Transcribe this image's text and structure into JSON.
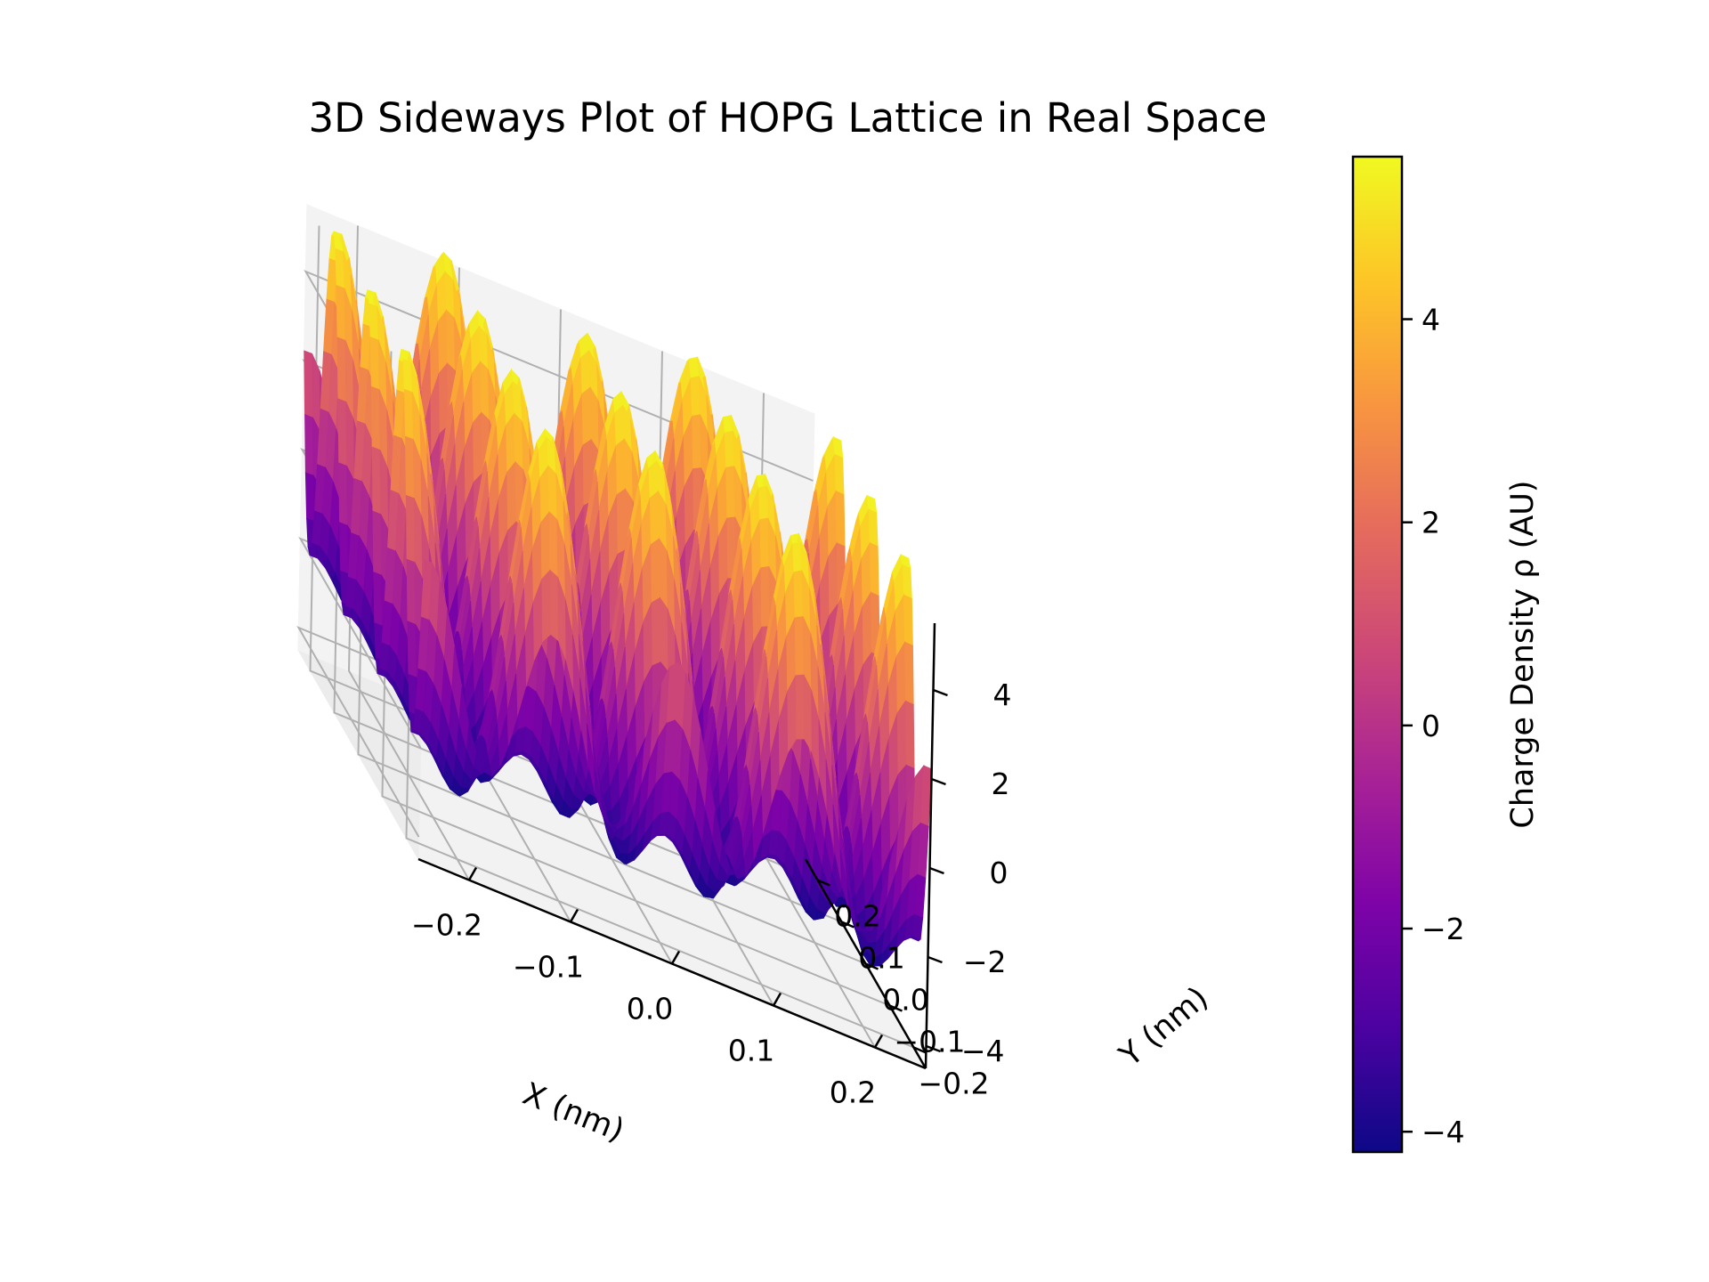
{
  "chart_data": {
    "type": "surface",
    "title": "3D Sideways Plot of HOPG Lattice in Real Space",
    "xlabel": "X (nm)",
    "ylabel": "Y (nm)",
    "zlabel": "",
    "colorbar_label": "Charge Density ρ (AU)",
    "colormap": "plasma",
    "x_range": [
      -0.25,
      0.25
    ],
    "y_range": [
      -0.25,
      0.25
    ],
    "z_range": [
      -4.5,
      5.5
    ],
    "x_ticks": [
      -0.2,
      -0.1,
      0.0,
      0.1,
      0.2
    ],
    "y_ticks": [
      -0.2,
      -0.1,
      0.0,
      0.1,
      0.2
    ],
    "z_ticks": [
      -4,
      -2,
      0,
      2,
      4
    ],
    "colorbar_range": [
      -4.2,
      5.6
    ],
    "colorbar_ticks": [
      -4,
      -2,
      0,
      2,
      4
    ],
    "function": "rho = 2*[cos(k*x) + cos(k*(-x/2 + sqrt(3)/2*y)) + cos(k*(-x/2 - sqrt(3)/2*y))], k = 4*pi/(sqrt(3)*0.142)",
    "z_min": -3.0,
    "z_max": 6.0,
    "grid": true
  },
  "labels": {
    "x_tick_labels": [
      "−0.2",
      "−0.1",
      "0.0",
      "0.1",
      "0.2"
    ],
    "y_tick_labels": [
      "−0.2",
      "−0.1",
      "0.0",
      "0.1",
      "0.2"
    ],
    "z_tick_labels": [
      "−4",
      "−2",
      "0",
      "2",
      "4"
    ],
    "cb_tick_labels": [
      "−4",
      "−2",
      "0",
      "2",
      "4"
    ]
  }
}
